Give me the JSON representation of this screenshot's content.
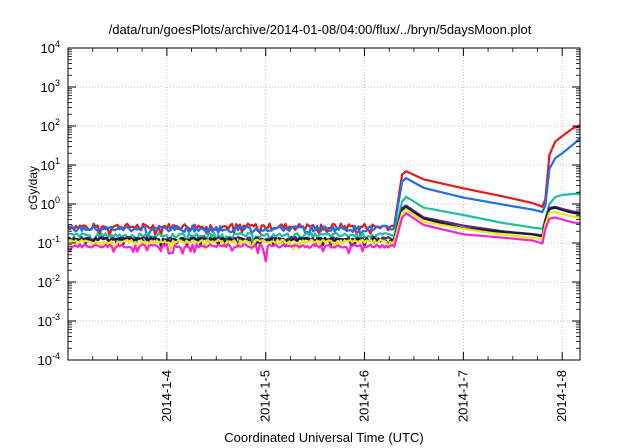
{
  "chart_data": {
    "type": "line",
    "title": "/data/run/goesPlots/archive/2014-01-08/04:00/flux/../bryn/5daysMoon.plot",
    "xlabel": "Coordinated Universal Time (UTC)",
    "ylabel": "cGy/day",
    "yscale": "log",
    "ylim": [
      0.0001,
      10000
    ],
    "xlim": [
      0,
      5.18
    ],
    "y_ticks": [
      {
        "value": 0.0001,
        "base": "10",
        "exp": "-4"
      },
      {
        "value": 0.001,
        "base": "10",
        "exp": "-3"
      },
      {
        "value": 0.01,
        "base": "10",
        "exp": "-2"
      },
      {
        "value": 0.1,
        "base": "10",
        "exp": "-1"
      },
      {
        "value": 1,
        "base": "10",
        "exp": "0"
      },
      {
        "value": 10,
        "base": "10",
        "exp": "1"
      },
      {
        "value": 100,
        "base": "10",
        "exp": "2"
      },
      {
        "value": 1000,
        "base": "10",
        "exp": "3"
      },
      {
        "value": 10000,
        "base": "10",
        "exp": "4"
      }
    ],
    "x_ticks": [
      {
        "value": 1,
        "label": "2014-1-4"
      },
      {
        "value": 2,
        "label": "2014-1-5"
      },
      {
        "value": 3,
        "label": "2014-1-6"
      },
      {
        "value": 4,
        "label": "2014-1-7"
      },
      {
        "value": 5,
        "label": "2014-1-8"
      }
    ],
    "grid": true,
    "series": [
      {
        "color": "#e41a1c",
        "base": 0.27,
        "noise": 0.18,
        "points": [
          [
            3.3,
            0.28
          ],
          [
            3.38,
            5.8
          ],
          [
            3.42,
            7.0
          ],
          [
            3.6,
            4.2
          ],
          [
            4.0,
            2.4
          ],
          [
            4.4,
            1.5
          ],
          [
            4.7,
            1.1
          ],
          [
            4.8,
            0.9
          ],
          [
            4.83,
            1.3
          ],
          [
            4.87,
            18
          ],
          [
            4.93,
            40
          ],
          [
            5.0,
            55
          ],
          [
            5.1,
            85
          ],
          [
            5.18,
            105
          ]
        ]
      },
      {
        "color": "#1f6fe8",
        "base": 0.24,
        "noise": 0.16,
        "points": [
          [
            3.3,
            0.24
          ],
          [
            3.38,
            3.8
          ],
          [
            3.42,
            4.8
          ],
          [
            3.6,
            2.7
          ],
          [
            4.0,
            1.5
          ],
          [
            4.4,
            0.95
          ],
          [
            4.7,
            0.7
          ],
          [
            4.8,
            0.6
          ],
          [
            4.83,
            0.9
          ],
          [
            4.87,
            8
          ],
          [
            4.93,
            15
          ],
          [
            5.0,
            20
          ],
          [
            5.1,
            32
          ],
          [
            5.18,
            48
          ]
        ]
      },
      {
        "color": "#1fbf9f",
        "base": 0.16,
        "noise": 0.12,
        "points": [
          [
            3.3,
            0.16
          ],
          [
            3.38,
            1.2
          ],
          [
            3.42,
            1.6
          ],
          [
            3.6,
            0.85
          ],
          [
            4.0,
            0.5
          ],
          [
            4.4,
            0.34
          ],
          [
            4.7,
            0.26
          ],
          [
            4.8,
            0.24
          ],
          [
            4.83,
            0.4
          ],
          [
            4.87,
            1.0
          ],
          [
            4.93,
            1.5
          ],
          [
            5.0,
            1.7
          ],
          [
            5.1,
            1.8
          ],
          [
            5.18,
            1.85
          ]
        ]
      },
      {
        "color": "#5a2a80",
        "base": 0.13,
        "noise": 0.1,
        "points": [
          [
            3.3,
            0.13
          ],
          [
            3.38,
            0.75
          ],
          [
            3.42,
            0.9
          ],
          [
            3.6,
            0.45
          ],
          [
            4.0,
            0.27
          ],
          [
            4.4,
            0.2
          ],
          [
            4.7,
            0.17
          ],
          [
            4.8,
            0.16
          ],
          [
            4.83,
            0.4
          ],
          [
            4.87,
            0.8
          ],
          [
            4.93,
            0.85
          ],
          [
            5.0,
            0.75
          ],
          [
            5.1,
            0.65
          ],
          [
            5.18,
            0.6
          ]
        ]
      },
      {
        "color": "#1a1a40",
        "base": 0.125,
        "noise": 0.1,
        "points": [
          [
            3.3,
            0.125
          ],
          [
            3.38,
            0.68
          ],
          [
            3.42,
            0.82
          ],
          [
            3.6,
            0.42
          ],
          [
            4.0,
            0.25
          ],
          [
            4.4,
            0.19
          ],
          [
            4.7,
            0.16
          ],
          [
            4.8,
            0.15
          ],
          [
            4.83,
            0.38
          ],
          [
            4.87,
            0.75
          ],
          [
            4.93,
            0.8
          ],
          [
            5.0,
            0.7
          ],
          [
            5.1,
            0.6
          ],
          [
            5.18,
            0.55
          ]
        ]
      },
      {
        "color": "#f5e31a",
        "base": 0.11,
        "noise": 0.1,
        "points": [
          [
            3.3,
            0.11
          ],
          [
            3.38,
            0.6
          ],
          [
            3.42,
            0.7
          ],
          [
            3.6,
            0.36
          ],
          [
            4.0,
            0.22
          ],
          [
            4.4,
            0.16
          ],
          [
            4.7,
            0.14
          ],
          [
            4.8,
            0.13
          ],
          [
            4.83,
            0.3
          ],
          [
            4.87,
            0.6
          ],
          [
            4.93,
            0.62
          ],
          [
            5.0,
            0.55
          ],
          [
            5.1,
            0.48
          ],
          [
            5.18,
            0.45
          ]
        ]
      },
      {
        "color": "#ff22cc",
        "base": 0.085,
        "noise": 0.1,
        "points": [
          [
            3.3,
            0.085
          ],
          [
            3.38,
            0.45
          ],
          [
            3.42,
            0.55
          ],
          [
            3.6,
            0.28
          ],
          [
            4.0,
            0.17
          ],
          [
            4.4,
            0.13
          ],
          [
            4.7,
            0.11
          ],
          [
            4.8,
            0.1
          ],
          [
            4.83,
            0.22
          ],
          [
            4.87,
            0.42
          ],
          [
            4.93,
            0.45
          ],
          [
            5.0,
            0.4
          ],
          [
            5.1,
            0.34
          ],
          [
            5.18,
            0.32
          ]
        ]
      }
    ]
  }
}
